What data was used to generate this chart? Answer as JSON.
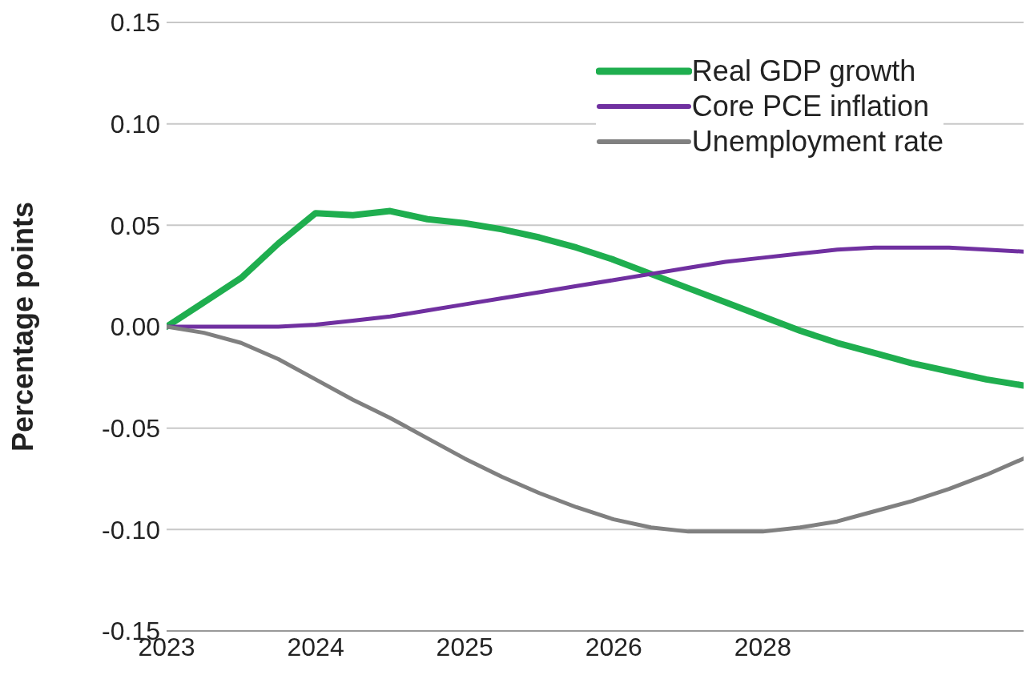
{
  "chart_data": {
    "type": "line",
    "ylabel": "Percentage points",
    "categories": [
      "2023",
      null,
      null,
      null,
      "2024",
      null,
      null,
      null,
      "2025",
      null,
      null,
      null,
      "2026",
      null,
      null,
      null,
      "2028",
      null,
      null,
      null,
      null,
      null,
      null,
      null
    ],
    "series": [
      {
        "name": "Real GDP growth",
        "color": "#1fae4f",
        "values": [
          0,
          0.012,
          0.024,
          0.041,
          0.056,
          0.055,
          0.057,
          0.053,
          0.051,
          0.048,
          0.044,
          0.039,
          0.033,
          0.026,
          0.019,
          0.012,
          0.005,
          -0.002,
          -0.008,
          -0.013,
          -0.018,
          -0.022,
          -0.026,
          -0.029
        ]
      },
      {
        "name": "Core PCE inflation",
        "color": "#7030a0",
        "values": [
          0,
          0,
          0,
          0,
          0.001,
          0.003,
          0.005,
          0.008,
          0.011,
          0.014,
          0.017,
          0.02,
          0.023,
          0.026,
          0.029,
          0.032,
          0.034,
          0.036,
          0.038,
          0.039,
          0.039,
          0.039,
          0.038,
          0.037
        ]
      },
      {
        "name": "Unemployment rate",
        "color": "#808080",
        "values": [
          0,
          -0.003,
          -0.008,
          -0.016,
          -0.026,
          -0.036,
          -0.045,
          -0.055,
          -0.065,
          -0.074,
          -0.082,
          -0.089,
          -0.095,
          -0.099,
          -0.101,
          -0.101,
          -0.101,
          -0.099,
          -0.096,
          -0.091,
          -0.086,
          -0.08,
          -0.073,
          -0.065
        ]
      }
    ],
    "ylim": [
      -0.15,
      0.15
    ],
    "yticks": [
      {
        "value": -0.15,
        "label": "-0.15"
      },
      {
        "value": -0.1,
        "label": "-0.10"
      },
      {
        "value": -0.05,
        "label": "-0.05"
      },
      {
        "value": 0,
        "label": "0.00"
      },
      {
        "value": 0.05,
        "label": "0.05"
      },
      {
        "value": 0.1,
        "label": "0.10"
      },
      {
        "value": 0.15,
        "label": "0.15"
      }
    ],
    "grid": "y",
    "legend": "top right",
    "marker": "none",
    "line_style": "solid"
  }
}
